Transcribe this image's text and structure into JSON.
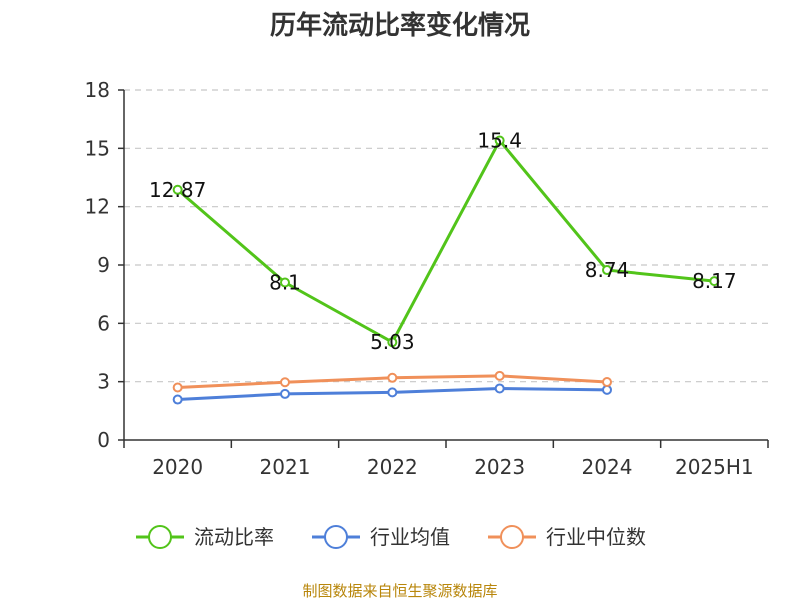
{
  "chart_data": {
    "type": "line",
    "title": "历年流动比率变化情况",
    "categories": [
      "2020",
      "2021",
      "2022",
      "2023",
      "2024",
      "2025H1"
    ],
    "yticks": [
      0,
      3,
      6,
      9,
      12,
      15,
      18
    ],
    "ylim": [
      0,
      18
    ],
    "grid": true,
    "legend_position": "bottom",
    "series": [
      {
        "name": "流动比率",
        "color": "#52c41a",
        "values": [
          12.87,
          8.1,
          5.03,
          15.4,
          8.74,
          8.17
        ],
        "labels": [
          "12.87",
          "8.1",
          "5.03",
          "15.4",
          "8.74",
          "8.17"
        ]
      },
      {
        "name": "行业均值",
        "color": "#4e7fd9",
        "values": [
          2.08,
          2.37,
          2.45,
          2.65,
          2.58,
          null
        ]
      },
      {
        "name": "行业中位数",
        "color": "#f0905a",
        "values": [
          2.7,
          2.97,
          3.2,
          3.3,
          2.98,
          null
        ]
      }
    ]
  },
  "source": "制图数据来自恒生聚源数据库"
}
